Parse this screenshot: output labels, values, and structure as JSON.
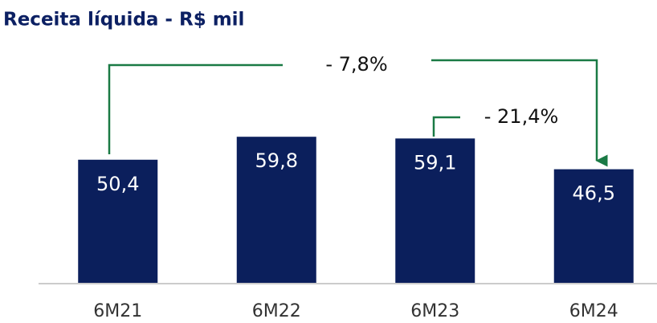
{
  "chart_data": {
    "type": "bar",
    "title": "Receita líquida - R$ mil",
    "categories": [
      "6M21",
      "6M22",
      "6M23",
      "6M24"
    ],
    "values": [
      50.4,
      59.8,
      59.1,
      46.5
    ],
    "value_labels": [
      "50,4",
      "59,8",
      "59,1",
      "46,5"
    ],
    "color": "#0b1f5c",
    "annotations": [
      "- 7,8%",
      "- 21,4%"
    ]
  }
}
